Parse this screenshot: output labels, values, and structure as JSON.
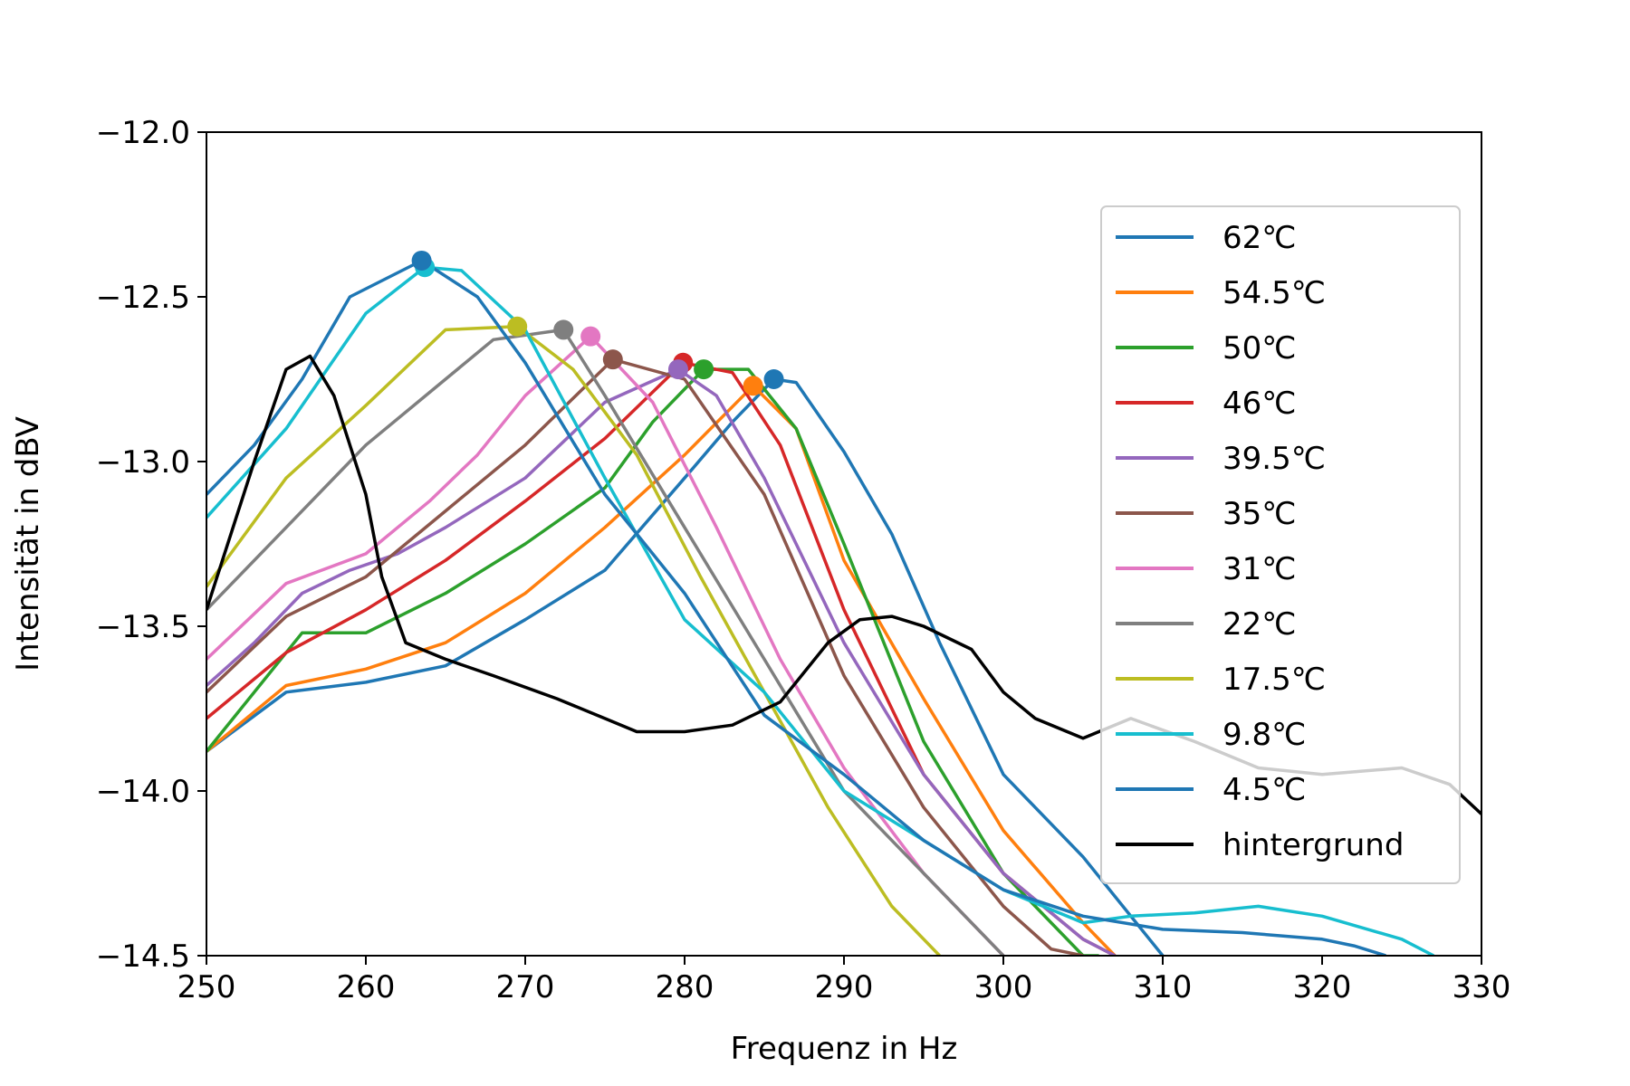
{
  "chart_data": {
    "type": "line",
    "title": "",
    "xlabel": "Frequenz in Hz",
    "ylabel": "Intensität in dBV",
    "xlim": [
      250,
      330
    ],
    "ylim": [
      -14.5,
      -12.0
    ],
    "xticks": [
      250,
      260,
      270,
      280,
      290,
      300,
      310,
      320,
      330
    ],
    "xtick_labels": [
      "250",
      "260",
      "270",
      "280",
      "290",
      "300",
      "310",
      "320",
      "330"
    ],
    "yticks": [
      -12.0,
      -12.5,
      -13.0,
      -13.5,
      -14.0,
      -14.5
    ],
    "ytick_labels": [
      "−12.0",
      "−12.5",
      "−13.0",
      "−13.5",
      "−14.0",
      "−14.5"
    ],
    "grid": false,
    "legend_position": "right",
    "series": [
      {
        "name": "62℃",
        "color": "#1f77b4",
        "x": [
          250,
          255,
          260,
          265,
          270,
          275,
          280,
          283,
          285.6,
          287,
          290,
          293,
          296,
          300,
          305,
          310
        ],
        "y": [
          -13.88,
          -13.7,
          -13.67,
          -13.62,
          -13.48,
          -13.33,
          -13.05,
          -12.88,
          -12.75,
          -12.76,
          -12.97,
          -13.22,
          -13.55,
          -13.95,
          -14.2,
          -14.5
        ],
        "peak": [
          285.6,
          -12.75
        ]
      },
      {
        "name": "54.5℃",
        "color": "#ff7f0e",
        "x": [
          250,
          255,
          260,
          265,
          270,
          275,
          280,
          284.3,
          287,
          290,
          295,
          300,
          305,
          307
        ],
        "y": [
          -13.88,
          -13.68,
          -13.63,
          -13.55,
          -13.4,
          -13.2,
          -12.98,
          -12.77,
          -12.9,
          -13.3,
          -13.72,
          -14.12,
          -14.4,
          -14.5
        ],
        "peak": [
          284.3,
          -12.77
        ]
      },
      {
        "name": "50℃",
        "color": "#2ca02c",
        "x": [
          250,
          253,
          256,
          260,
          265,
          270,
          275,
          278,
          281.2,
          284,
          287,
          290,
          295,
          300,
          305,
          306
        ],
        "y": [
          -13.88,
          -13.7,
          -13.52,
          -13.52,
          -13.4,
          -13.25,
          -13.08,
          -12.88,
          -12.72,
          -12.72,
          -12.9,
          -13.25,
          -13.85,
          -14.25,
          -14.5,
          -14.5
        ],
        "peak": [
          281.2,
          -12.72
        ]
      },
      {
        "name": "46℃",
        "color": "#d62728",
        "x": [
          250,
          255,
          260,
          265,
          270,
          275,
          279.9,
          283,
          286,
          290,
          295,
          300,
          305,
          307
        ],
        "y": [
          -13.78,
          -13.58,
          -13.45,
          -13.3,
          -13.12,
          -12.93,
          -12.7,
          -12.73,
          -12.95,
          -13.45,
          -13.95,
          -14.25,
          -14.45,
          -14.5
        ],
        "peak": [
          279.9,
          -12.7
        ]
      },
      {
        "name": "39.5℃",
        "color": "#9467bd",
        "x": [
          250,
          253,
          256,
          259,
          262,
          265,
          270,
          275,
          279.6,
          282,
          285,
          290,
          295,
          300,
          305,
          307
        ],
        "y": [
          -13.68,
          -13.55,
          -13.4,
          -13.33,
          -13.28,
          -13.2,
          -13.05,
          -12.82,
          -12.72,
          -12.8,
          -13.05,
          -13.55,
          -13.95,
          -14.25,
          -14.45,
          -14.5
        ],
        "peak": [
          279.6,
          -12.72
        ]
      },
      {
        "name": "35℃",
        "color": "#8c564b",
        "x": [
          250,
          255,
          260,
          265,
          270,
          275.5,
          280,
          285,
          290,
          295,
          300,
          303,
          305
        ],
        "y": [
          -13.7,
          -13.47,
          -13.35,
          -13.15,
          -12.95,
          -12.69,
          -12.75,
          -13.1,
          -13.65,
          -14.05,
          -14.35,
          -14.48,
          -14.5
        ],
        "peak": [
          275.5,
          -12.69
        ]
      },
      {
        "name": "31℃",
        "color": "#e377c2",
        "x": [
          250,
          255,
          260,
          264,
          267,
          270,
          274.1,
          278,
          282,
          286,
          290,
          295,
          300
        ],
        "y": [
          -13.6,
          -13.37,
          -13.28,
          -13.12,
          -12.98,
          -12.8,
          -12.62,
          -12.82,
          -13.2,
          -13.6,
          -13.93,
          -14.25,
          -14.5
        ],
        "peak": [
          274.1,
          -12.62
        ]
      },
      {
        "name": "22℃",
        "color": "#7f7f7f",
        "x": [
          250,
          255,
          260,
          265,
          268,
          272.4,
          275,
          280,
          285,
          290,
          295,
          300
        ],
        "y": [
          -13.45,
          -13.2,
          -12.95,
          -12.75,
          -12.63,
          -12.6,
          -12.8,
          -13.2,
          -13.6,
          -14.0,
          -14.25,
          -14.5
        ],
        "peak": [
          272.4,
          -12.6
        ]
      },
      {
        "name": "17.5℃",
        "color": "#bcbd22",
        "x": [
          250,
          255,
          260,
          265,
          269.5,
          273,
          277,
          281,
          285,
          289,
          293,
          296
        ],
        "y": [
          -13.38,
          -13.05,
          -12.83,
          -12.6,
          -12.59,
          -12.72,
          -12.98,
          -13.35,
          -13.7,
          -14.05,
          -14.35,
          -14.5
        ],
        "peak": [
          269.5,
          -12.59
        ]
      },
      {
        "name": "9.8℃",
        "color": "#17becf",
        "x": [
          250,
          255,
          260,
          263.7,
          266,
          270,
          275,
          280,
          285,
          290,
          295,
          300,
          305,
          308,
          312,
          316,
          320,
          325,
          327
        ],
        "y": [
          -13.17,
          -12.9,
          -12.55,
          -12.41,
          -12.42,
          -12.6,
          -13.05,
          -13.48,
          -13.7,
          -14.0,
          -14.15,
          -14.3,
          -14.4,
          -14.38,
          -14.37,
          -14.35,
          -14.38,
          -14.45,
          -14.5
        ],
        "peak": [
          263.7,
          -12.41
        ]
      },
      {
        "name": "4.5℃",
        "color": "#1f77b4",
        "x": [
          250,
          253,
          256,
          259,
          263.5,
          267,
          270,
          275,
          280,
          285,
          290,
          295,
          300,
          305,
          310,
          315,
          320,
          322,
          324
        ],
        "y": [
          -13.1,
          -12.95,
          -12.75,
          -12.5,
          -12.39,
          -12.5,
          -12.7,
          -13.1,
          -13.4,
          -13.77,
          -13.95,
          -14.15,
          -14.3,
          -14.38,
          -14.42,
          -14.43,
          -14.45,
          -14.47,
          -14.5
        ],
        "peak": [
          263.5,
          -12.39
        ]
      },
      {
        "name": "hintergrund",
        "color": "#000000",
        "x": [
          250,
          251,
          253,
          255,
          256.5,
          258,
          260,
          261,
          262.5,
          265,
          268,
          272,
          275,
          277,
          280,
          283,
          286,
          289,
          291,
          293,
          295,
          298,
          300,
          302,
          305,
          308,
          312,
          316,
          320,
          325,
          328,
          330
        ],
        "y": [
          -13.45,
          -13.3,
          -13.0,
          -12.72,
          -12.68,
          -12.8,
          -13.1,
          -13.35,
          -13.55,
          -13.6,
          -13.65,
          -13.72,
          -13.78,
          -13.82,
          -13.82,
          -13.8,
          -13.73,
          -13.55,
          -13.48,
          -13.47,
          -13.5,
          -13.57,
          -13.7,
          -13.78,
          -13.84,
          -13.78,
          -13.85,
          -13.93,
          -13.95,
          -13.93,
          -13.98,
          -14.07
        ]
      }
    ]
  }
}
